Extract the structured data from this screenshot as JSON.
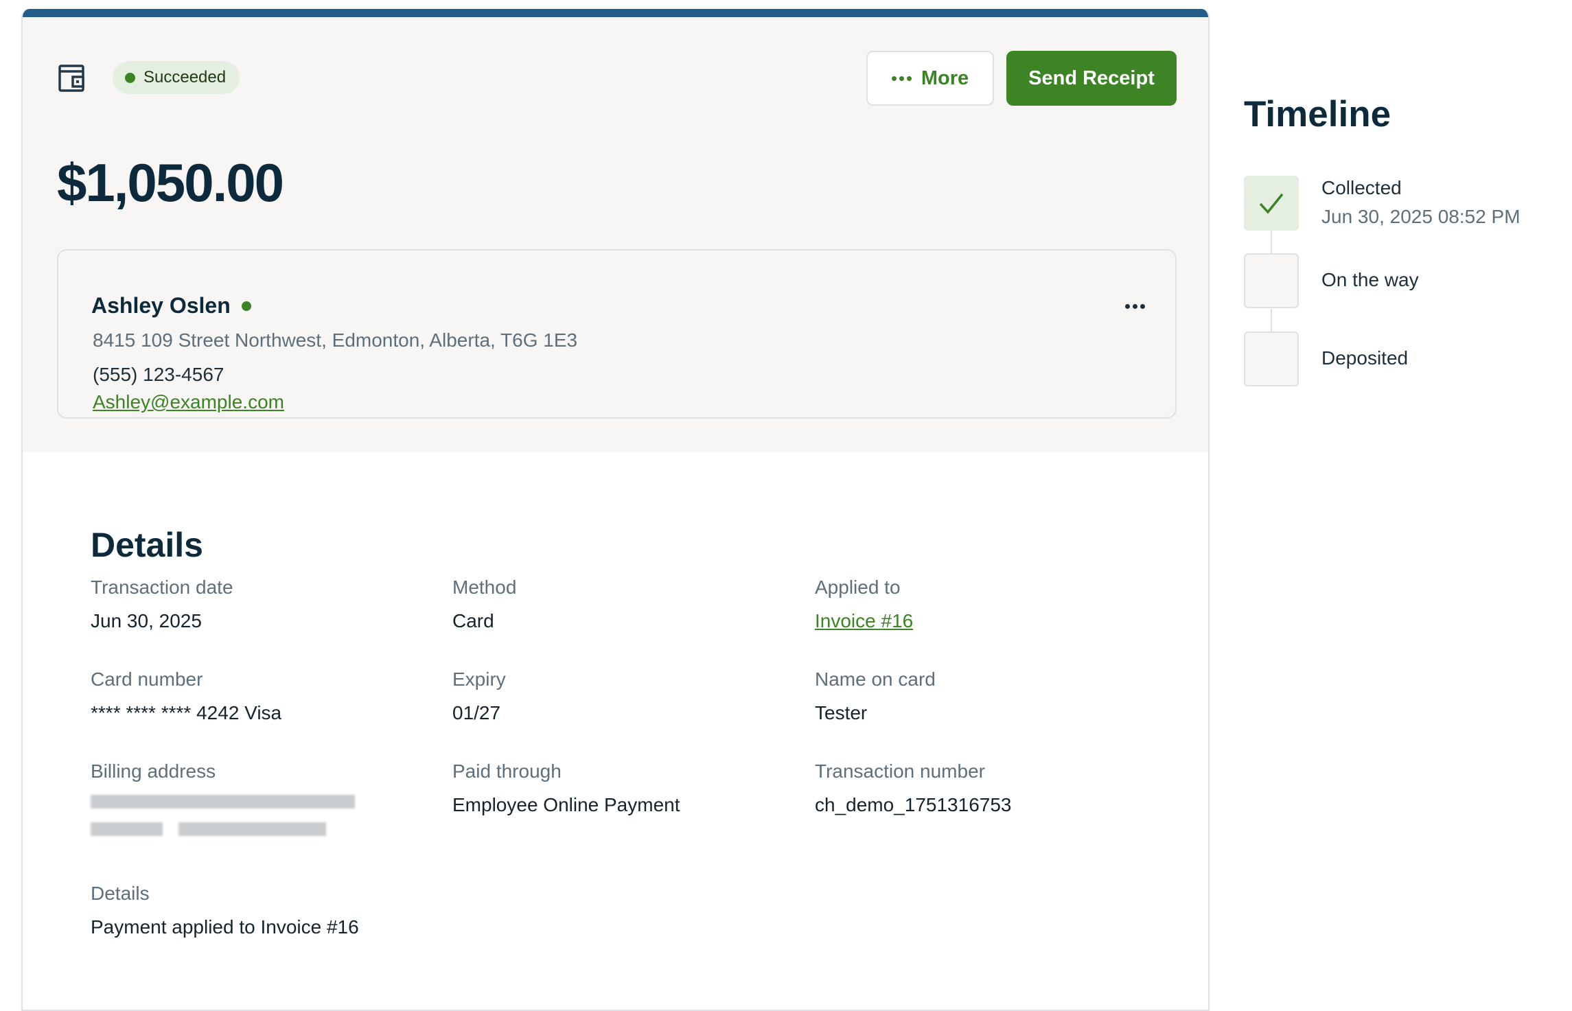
{
  "header": {
    "status": "Succeeded",
    "more_label": "More",
    "send_receipt_label": "Send Receipt",
    "amount": "$1,050.00"
  },
  "customer": {
    "name": "Ashley Oslen",
    "address": "8415 109 Street Northwest, Edmonton, Alberta, T6G 1E3",
    "phone": "(555) 123-4567",
    "email": "Ashley@example.com"
  },
  "details": {
    "title": "Details",
    "fields": [
      {
        "label": "Transaction date",
        "value": "Jun 30, 2025"
      },
      {
        "label": "Method",
        "value": "Card"
      },
      {
        "label": "Applied to",
        "value": "Invoice #16"
      },
      {
        "label": "Card number",
        "value": "**** **** **** 4242 Visa"
      },
      {
        "label": "Expiry",
        "value": "01/27"
      },
      {
        "label": "Name on card",
        "value": "Tester"
      },
      {
        "label": "Billing address",
        "value": ""
      },
      {
        "label": "Paid through",
        "value": "Employee Online Payment"
      },
      {
        "label": "Transaction number",
        "value": "ch_demo_1751316753"
      },
      {
        "label": "Details",
        "value": "Payment applied to Invoice #16"
      }
    ]
  },
  "timeline": {
    "title": "Timeline",
    "steps": [
      {
        "label": "Collected",
        "date": "Jun 30, 2025 08:52 PM",
        "done": true
      },
      {
        "label": "On the way",
        "done": false
      },
      {
        "label": "Deposited",
        "done": false
      }
    ]
  },
  "colors": {
    "accent": "#3c8424",
    "topbar": "#245d8a",
    "text": "#0c2a3b",
    "muted": "#5c6f7b"
  }
}
